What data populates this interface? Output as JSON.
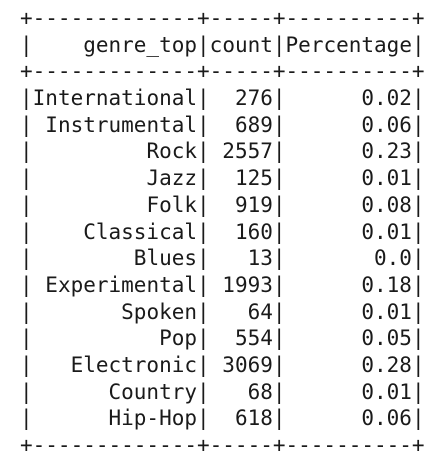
{
  "table": {
    "columns": [
      "genre_top",
      "count",
      "Percentage"
    ],
    "rows": [
      [
        "International",
        "276",
        "0.02"
      ],
      [
        "Instrumental",
        "689",
        "0.06"
      ],
      [
        "Rock",
        "2557",
        "0.23"
      ],
      [
        "Jazz",
        "125",
        "0.01"
      ],
      [
        "Folk",
        "919",
        "0.08"
      ],
      [
        "Classical",
        "160",
        "0.01"
      ],
      [
        "Blues",
        "13",
        "0.0"
      ],
      [
        "Experimental",
        "1993",
        "0.18"
      ],
      [
        "Spoken",
        "64",
        "0.01"
      ],
      [
        "Pop",
        "554",
        "0.05"
      ],
      [
        "Electronic",
        "3069",
        "0.28"
      ],
      [
        "Country",
        "68",
        "0.01"
      ],
      [
        "Hip-Hop",
        "618",
        "0.06"
      ]
    ]
  }
}
